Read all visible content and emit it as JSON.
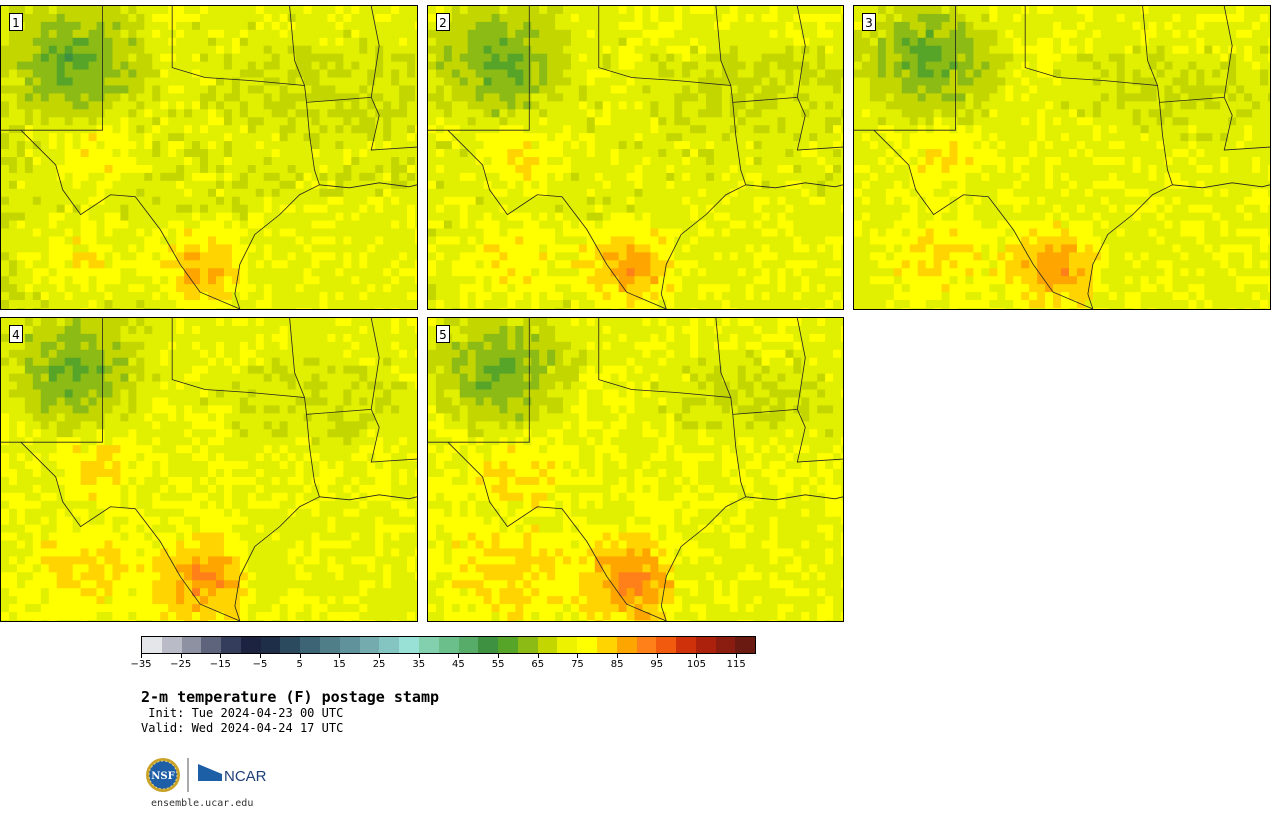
{
  "panels": [
    {
      "number": "1",
      "variant": 0
    },
    {
      "number": "2",
      "variant": 1
    },
    {
      "number": "3",
      "variant": 2
    },
    {
      "number": "4",
      "variant": 3
    },
    {
      "number": "5",
      "variant": 4
    }
  ],
  "colorbar": {
    "colors": [
      "#e4e6ea",
      "#b9bcc6",
      "#8d91a2",
      "#5f647d",
      "#353d5c",
      "#1b2340",
      "#1e2d48",
      "#2b4a5e",
      "#3c6474",
      "#4f7d88",
      "#5f929b",
      "#73abaf",
      "#84c4c1",
      "#99e1d6",
      "#82d0ad",
      "#6bbf8a",
      "#57ac6a",
      "#3d9140",
      "#57a528",
      "#8dbb16",
      "#c3d600",
      "#ecf200",
      "#ffff00",
      "#ffd400",
      "#ffa500",
      "#ff7f18",
      "#f25a0d",
      "#cf310a",
      "#ab210c",
      "#8a1c10",
      "#6b1a12"
    ],
    "tick_labels": [
      "−35",
      "−25",
      "−15",
      "−5",
      "5",
      "15",
      "25",
      "35",
      "45",
      "55",
      "65",
      "75",
      "85",
      "95",
      "105",
      "115"
    ]
  },
  "title": "2-m temperature (F) postage stamp",
  "init": " Init: Tue 2024-04-23 00 UTC",
  "valid": "Valid: Wed 2024-04-24 17 UTC",
  "footer": "ensemble.ucar.edu",
  "logos": {
    "nsf": "NSF",
    "ncar": "NCAR"
  }
}
